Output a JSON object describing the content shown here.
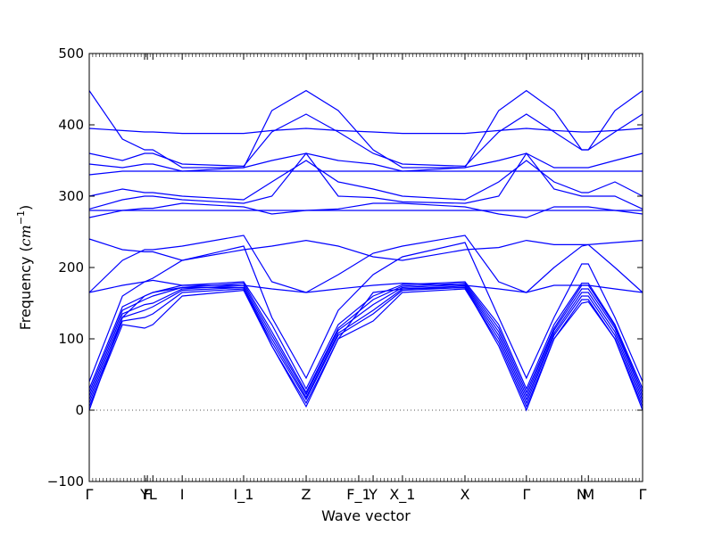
{
  "chart_data": {
    "type": "line",
    "title": "",
    "xlabel": "Wave vector",
    "ylabel_main": "Frequency (",
    "ylabel_unit": "cm",
    "ylabel_exp": "−1",
    "ylabel_close": ")",
    "ylim": [
      -100,
      500
    ],
    "xlim": [
      0,
      1
    ],
    "yticks": [
      -100,
      0,
      100,
      200,
      300,
      400,
      500
    ],
    "ytick_labels": [
      "−100",
      "0",
      "100",
      "200",
      "300",
      "400",
      "500"
    ],
    "zero_line": {
      "y": 0,
      "style": "dotted"
    },
    "grid": false,
    "line_color": "#0000ff",
    "high_symmetry_points": [
      {
        "label": "Γ",
        "x": 0.0
      },
      {
        "label": "Y",
        "x": 0.1
      },
      {
        "label": "F",
        "x": 0.105
      },
      {
        "label": "L",
        "x": 0.115
      },
      {
        "label": "I",
        "x": 0.168
      },
      {
        "label": "I_1",
        "x": 0.279
      },
      {
        "label": "Z",
        "x": 0.392
      },
      {
        "label": "F_1",
        "x": 0.487
      },
      {
        "label": "Y",
        "x": 0.513
      },
      {
        "label": "X_1",
        "x": 0.566
      },
      {
        "label": "X",
        "x": 0.679
      },
      {
        "label": "Γ",
        "x": 0.79
      },
      {
        "label": "N",
        "x": 0.89
      },
      {
        "label": "M",
        "x": 0.902
      },
      {
        "label": "Γ",
        "x": 1.0
      }
    ],
    "series": [
      {
        "x": [
          0,
          0.06,
          0.1,
          0.115,
          0.168,
          0.279,
          0.33,
          0.392,
          0.45,
          0.513,
          0.566,
          0.679,
          0.74,
          0.79,
          0.84,
          0.89,
          0.902,
          0.95,
          1.0
        ],
        "y": [
          0,
          130,
          160,
          165,
          172,
          172,
          90,
          5,
          100,
          165,
          170,
          172,
          90,
          0,
          100,
          150,
          152,
          100,
          0
        ]
      },
      {
        "x": [
          0,
          0.06,
          0.1,
          0.115,
          0.168,
          0.279,
          0.33,
          0.392,
          0.45,
          0.513,
          0.566,
          0.679,
          0.74,
          0.79,
          0.84,
          0.89,
          0.902,
          0.95,
          1.0
        ],
        "y": [
          5,
          120,
          115,
          120,
          160,
          168,
          90,
          10,
          100,
          125,
          165,
          170,
          95,
          5,
          100,
          155,
          155,
          100,
          5
        ]
      },
      {
        "x": [
          0,
          0.06,
          0.1,
          0.115,
          0.168,
          0.279,
          0.33,
          0.392,
          0.45,
          0.513,
          0.566,
          0.679,
          0.74,
          0.79,
          0.84,
          0.89,
          0.902,
          0.95,
          1.0
        ],
        "y": [
          10,
          125,
          130,
          135,
          165,
          170,
          95,
          15,
          105,
          135,
          168,
          172,
          100,
          10,
          105,
          160,
          160,
          105,
          10
        ]
      },
      {
        "x": [
          0,
          0.06,
          0.1,
          0.115,
          0.168,
          0.279,
          0.33,
          0.392,
          0.45,
          0.513,
          0.566,
          0.679,
          0.74,
          0.79,
          0.84,
          0.89,
          0.902,
          0.95,
          1.0
        ],
        "y": [
          15,
          130,
          140,
          145,
          168,
          172,
          100,
          18,
          108,
          140,
          170,
          174,
          105,
          15,
          108,
          165,
          165,
          110,
          15
        ]
      },
      {
        "x": [
          0,
          0.06,
          0.1,
          0.115,
          0.168,
          0.279,
          0.33,
          0.392,
          0.45,
          0.513,
          0.566,
          0.679,
          0.74,
          0.79,
          0.84,
          0.89,
          0.902,
          0.95,
          1.0
        ],
        "y": [
          20,
          135,
          148,
          150,
          170,
          175,
          105,
          22,
          112,
          148,
          172,
          176,
          110,
          20,
          112,
          170,
          170,
          115,
          20
        ]
      },
      {
        "x": [
          0,
          0.06,
          0.1,
          0.115,
          0.168,
          0.279,
          0.33,
          0.392,
          0.45,
          0.513,
          0.566,
          0.679,
          0.74,
          0.79,
          0.84,
          0.89,
          0.902,
          0.95,
          1.0
        ],
        "y": [
          25,
          140,
          155,
          160,
          172,
          178,
          110,
          25,
          115,
          155,
          174,
          178,
          115,
          25,
          115,
          175,
          175,
          118,
          25
        ]
      },
      {
        "x": [
          0,
          0.06,
          0.1,
          0.115,
          0.168,
          0.279,
          0.33,
          0.392,
          0.45,
          0.513,
          0.566,
          0.679,
          0.74,
          0.79,
          0.84,
          0.89,
          0.902,
          0.95,
          1.0
        ],
        "y": [
          30,
          145,
          160,
          165,
          175,
          180,
          120,
          30,
          120,
          160,
          176,
          180,
          120,
          30,
          120,
          178,
          178,
          120,
          30
        ]
      },
      {
        "x": [
          0,
          0.06,
          0.1,
          0.115,
          0.168,
          0.279,
          0.33,
          0.392,
          0.45,
          0.513,
          0.566,
          0.679,
          0.74,
          0.79,
          0.84,
          0.89,
          0.902,
          0.95,
          1.0
        ],
        "y": [
          40,
          160,
          180,
          185,
          210,
          230,
          130,
          45,
          140,
          190,
          215,
          235,
          130,
          45,
          130,
          205,
          205,
          130,
          40
        ]
      },
      {
        "x": [
          0,
          0.06,
          0.1,
          0.115,
          0.168,
          0.279,
          0.33,
          0.392,
          0.45,
          0.513,
          0.566,
          0.679,
          0.74,
          0.79,
          0.84,
          0.89,
          0.902,
          0.95,
          1.0
        ],
        "y": [
          165,
          175,
          180,
          182,
          175,
          175,
          170,
          165,
          170,
          175,
          178,
          175,
          170,
          165,
          175,
          175,
          175,
          170,
          165
        ]
      },
      {
        "x": [
          0,
          0.06,
          0.1,
          0.115,
          0.168,
          0.279,
          0.33,
          0.392,
          0.45,
          0.513,
          0.566,
          0.679,
          0.74,
          0.79,
          0.84,
          0.89,
          0.902,
          0.95,
          1.0
        ],
        "y": [
          165,
          210,
          225,
          225,
          230,
          245,
          180,
          165,
          190,
          220,
          230,
          245,
          180,
          165,
          200,
          230,
          232,
          200,
          165
        ]
      },
      {
        "x": [
          0,
          0.06,
          0.1,
          0.115,
          0.168,
          0.279,
          0.33,
          0.392,
          0.45,
          0.513,
          0.566,
          0.679,
          0.74,
          0.79,
          0.84,
          0.89,
          0.902,
          0.95,
          1.0
        ],
        "y": [
          240,
          225,
          222,
          222,
          210,
          225,
          230,
          238,
          230,
          215,
          210,
          225,
          228,
          238,
          232,
          232,
          232,
          235,
          238
        ]
      },
      {
        "x": [
          0,
          0.06,
          0.1,
          0.115,
          0.168,
          0.279,
          0.33,
          0.392,
          0.45,
          0.513,
          0.566,
          0.679,
          0.74,
          0.79,
          0.84,
          0.89,
          0.902,
          0.95,
          1.0
        ],
        "y": [
          270,
          280,
          283,
          283,
          290,
          285,
          275,
          280,
          282,
          290,
          290,
          285,
          275,
          270,
          285,
          285,
          285,
          280,
          275
        ]
      },
      {
        "x": [
          0,
          0.06,
          0.1,
          0.115,
          0.168,
          0.279,
          0.33,
          0.392,
          0.45,
          0.513,
          0.566,
          0.679,
          0.74,
          0.79,
          0.84,
          0.89,
          0.902,
          0.95,
          1.0
        ],
        "y": [
          280,
          280,
          280,
          280,
          280,
          280,
          280,
          280,
          280,
          280,
          280,
          280,
          280,
          280,
          280,
          280,
          280,
          280,
          280
        ]
      },
      {
        "x": [
          0,
          0.06,
          0.1,
          0.115,
          0.168,
          0.279,
          0.33,
          0.392,
          0.45,
          0.513,
          0.566,
          0.679,
          0.74,
          0.79,
          0.84,
          0.89,
          0.902,
          0.95,
          1.0
        ],
        "y": [
          282,
          295,
          300,
          300,
          295,
          290,
          300,
          360,
          300,
          298,
          292,
          290,
          300,
          360,
          310,
          300,
          300,
          300,
          282
        ]
      },
      {
        "x": [
          0,
          0.06,
          0.1,
          0.115,
          0.168,
          0.279,
          0.33,
          0.392,
          0.45,
          0.513,
          0.566,
          0.679,
          0.74,
          0.79,
          0.84,
          0.89,
          0.902,
          0.95,
          1.0
        ],
        "y": [
          300,
          310,
          305,
          305,
          300,
          295,
          320,
          350,
          320,
          310,
          300,
          295,
          320,
          350,
          320,
          305,
          305,
          320,
          300
        ]
      },
      {
        "x": [
          0,
          0.06,
          0.1,
          0.115,
          0.168,
          0.279,
          0.33,
          0.392,
          0.45,
          0.513,
          0.566,
          0.679,
          0.74,
          0.79,
          0.84,
          0.89,
          0.902,
          0.95,
          1.0
        ],
        "y": [
          330,
          335,
          335,
          335,
          335,
          335,
          335,
          335,
          335,
          335,
          335,
          335,
          335,
          335,
          335,
          335,
          335,
          335,
          335
        ]
      },
      {
        "x": [
          0,
          0.06,
          0.1,
          0.115,
          0.168,
          0.279,
          0.33,
          0.392,
          0.45,
          0.513,
          0.566,
          0.679,
          0.74,
          0.79,
          0.84,
          0.89,
          0.902,
          0.95,
          1.0
        ],
        "y": [
          345,
          340,
          345,
          345,
          335,
          340,
          350,
          360,
          350,
          345,
          335,
          340,
          350,
          360,
          340,
          340,
          340,
          350,
          360
        ]
      },
      {
        "x": [
          0,
          0.06,
          0.1,
          0.115,
          0.168,
          0.279,
          0.33,
          0.392,
          0.45,
          0.513,
          0.566,
          0.679,
          0.74,
          0.79,
          0.84,
          0.89,
          0.902,
          0.95,
          1.0
        ],
        "y": [
          360,
          350,
          360,
          360,
          345,
          342,
          390,
          415,
          390,
          360,
          345,
          342,
          390,
          415,
          390,
          365,
          365,
          390,
          415
        ]
      },
      {
        "x": [
          0,
          0.06,
          0.1,
          0.115,
          0.168,
          0.279,
          0.33,
          0.392,
          0.45,
          0.513,
          0.566,
          0.679,
          0.74,
          0.79,
          0.84,
          0.89,
          0.902,
          0.95,
          1.0
        ],
        "y": [
          395,
          392,
          390,
          390,
          388,
          388,
          392,
          395,
          392,
          390,
          388,
          388,
          392,
          395,
          392,
          390,
          390,
          392,
          395
        ]
      },
      {
        "x": [
          0,
          0.06,
          0.1,
          0.115,
          0.168,
          0.279,
          0.33,
          0.392,
          0.45,
          0.513,
          0.566,
          0.679,
          0.74,
          0.79,
          0.84,
          0.89,
          0.902,
          0.95,
          1.0
        ],
        "y": [
          448,
          380,
          365,
          365,
          340,
          340,
          420,
          448,
          420,
          365,
          340,
          340,
          420,
          448,
          420,
          365,
          365,
          420,
          448
        ]
      }
    ]
  }
}
